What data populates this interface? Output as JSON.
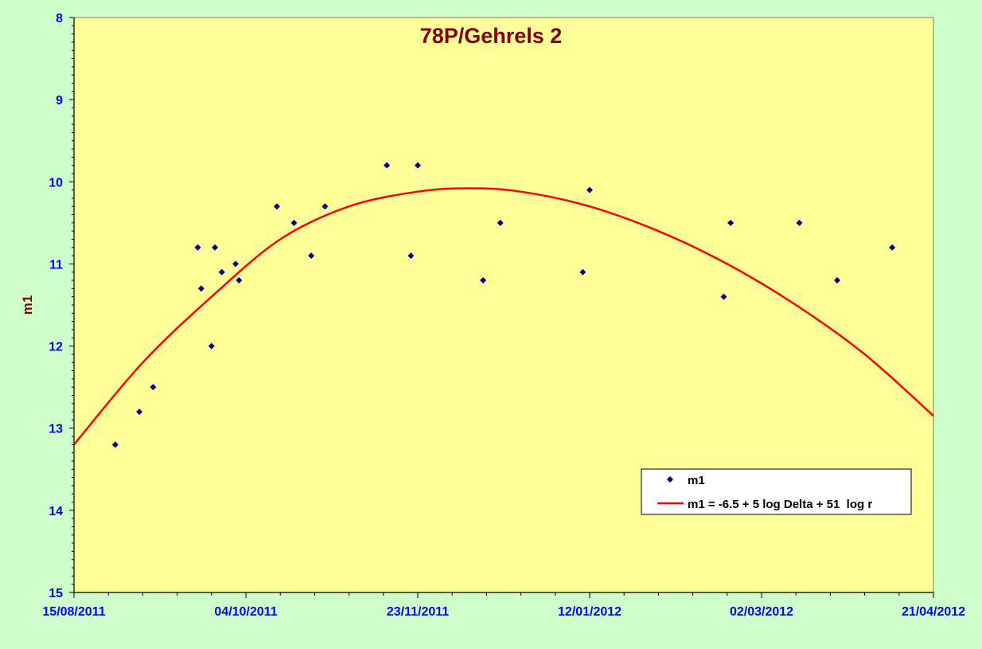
{
  "chart_data": {
    "type": "scatter",
    "title": "78P/Gehrels 2",
    "xlabel": "",
    "ylabel": "m1",
    "x_axis": {
      "type": "date",
      "min": "2011-08-15",
      "max": "2012-04-21"
    },
    "y_axis": {
      "min": 8,
      "max": 15,
      "inverted": true
    },
    "x_tick_labels": [
      "15/08/2011",
      "04/10/2011",
      "23/11/2011",
      "12/01/2012",
      "02/03/2012",
      "21/04/2012"
    ],
    "y_tick_labels": [
      "8",
      "9",
      "10",
      "11",
      "12",
      "13",
      "14",
      "15"
    ],
    "grid": false,
    "legend_position": "bottom-right",
    "colors": {
      "plot_background": "#ffff99",
      "figure_background": "#ccffcc",
      "points": "#000080",
      "fit_line": "#ff0000",
      "title": "#800000",
      "ticks": "#0000ff"
    },
    "series": [
      {
        "name": "m1",
        "kind": "scatter",
        "points": [
          {
            "x": "2011-08-27",
            "y": 13.2
          },
          {
            "x": "2011-09-03",
            "y": 12.8
          },
          {
            "x": "2011-09-07",
            "y": 12.5
          },
          {
            "x": "2011-09-20",
            "y": 10.8
          },
          {
            "x": "2011-09-21",
            "y": 11.3
          },
          {
            "x": "2011-09-24",
            "y": 12.0
          },
          {
            "x": "2011-09-25",
            "y": 10.8
          },
          {
            "x": "2011-09-27",
            "y": 11.1
          },
          {
            "x": "2011-10-01",
            "y": 11.0
          },
          {
            "x": "2011-10-02",
            "y": 11.2
          },
          {
            "x": "2011-10-13",
            "y": 10.3
          },
          {
            "x": "2011-10-18",
            "y": 10.5
          },
          {
            "x": "2011-10-23",
            "y": 10.9
          },
          {
            "x": "2011-10-27",
            "y": 10.3
          },
          {
            "x": "2011-11-14",
            "y": 9.8
          },
          {
            "x": "2011-11-21",
            "y": 10.9
          },
          {
            "x": "2011-11-23",
            "y": 9.8
          },
          {
            "x": "2011-12-12",
            "y": 11.2
          },
          {
            "x": "2011-12-17",
            "y": 10.5
          },
          {
            "x": "2012-01-10",
            "y": 11.1
          },
          {
            "x": "2012-01-12",
            "y": 10.1
          },
          {
            "x": "2012-02-20",
            "y": 11.4
          },
          {
            "x": "2012-02-22",
            "y": 10.5
          },
          {
            "x": "2012-03-13",
            "y": 10.5
          },
          {
            "x": "2012-03-24",
            "y": 11.2
          },
          {
            "x": "2012-04-09",
            "y": 10.8
          }
        ]
      },
      {
        "name": "m1 = -6.5 + 5 log Delta + 51  log r",
        "kind": "line",
        "points": [
          {
            "x": "2011-08-15",
            "y": 13.2
          },
          {
            "x": "2011-09-04",
            "y": 12.2
          },
          {
            "x": "2011-09-24",
            "y": 11.4
          },
          {
            "x": "2011-10-14",
            "y": 10.7
          },
          {
            "x": "2011-11-03",
            "y": 10.3
          },
          {
            "x": "2011-11-23",
            "y": 10.12
          },
          {
            "x": "2011-12-08",
            "y": 10.08
          },
          {
            "x": "2011-12-23",
            "y": 10.12
          },
          {
            "x": "2012-01-12",
            "y": 10.3
          },
          {
            "x": "2012-02-01",
            "y": 10.6
          },
          {
            "x": "2012-02-21",
            "y": 11.0
          },
          {
            "x": "2012-03-12",
            "y": 11.5
          },
          {
            "x": "2012-04-01",
            "y": 12.1
          },
          {
            "x": "2012-04-21",
            "y": 12.85
          }
        ]
      }
    ]
  }
}
